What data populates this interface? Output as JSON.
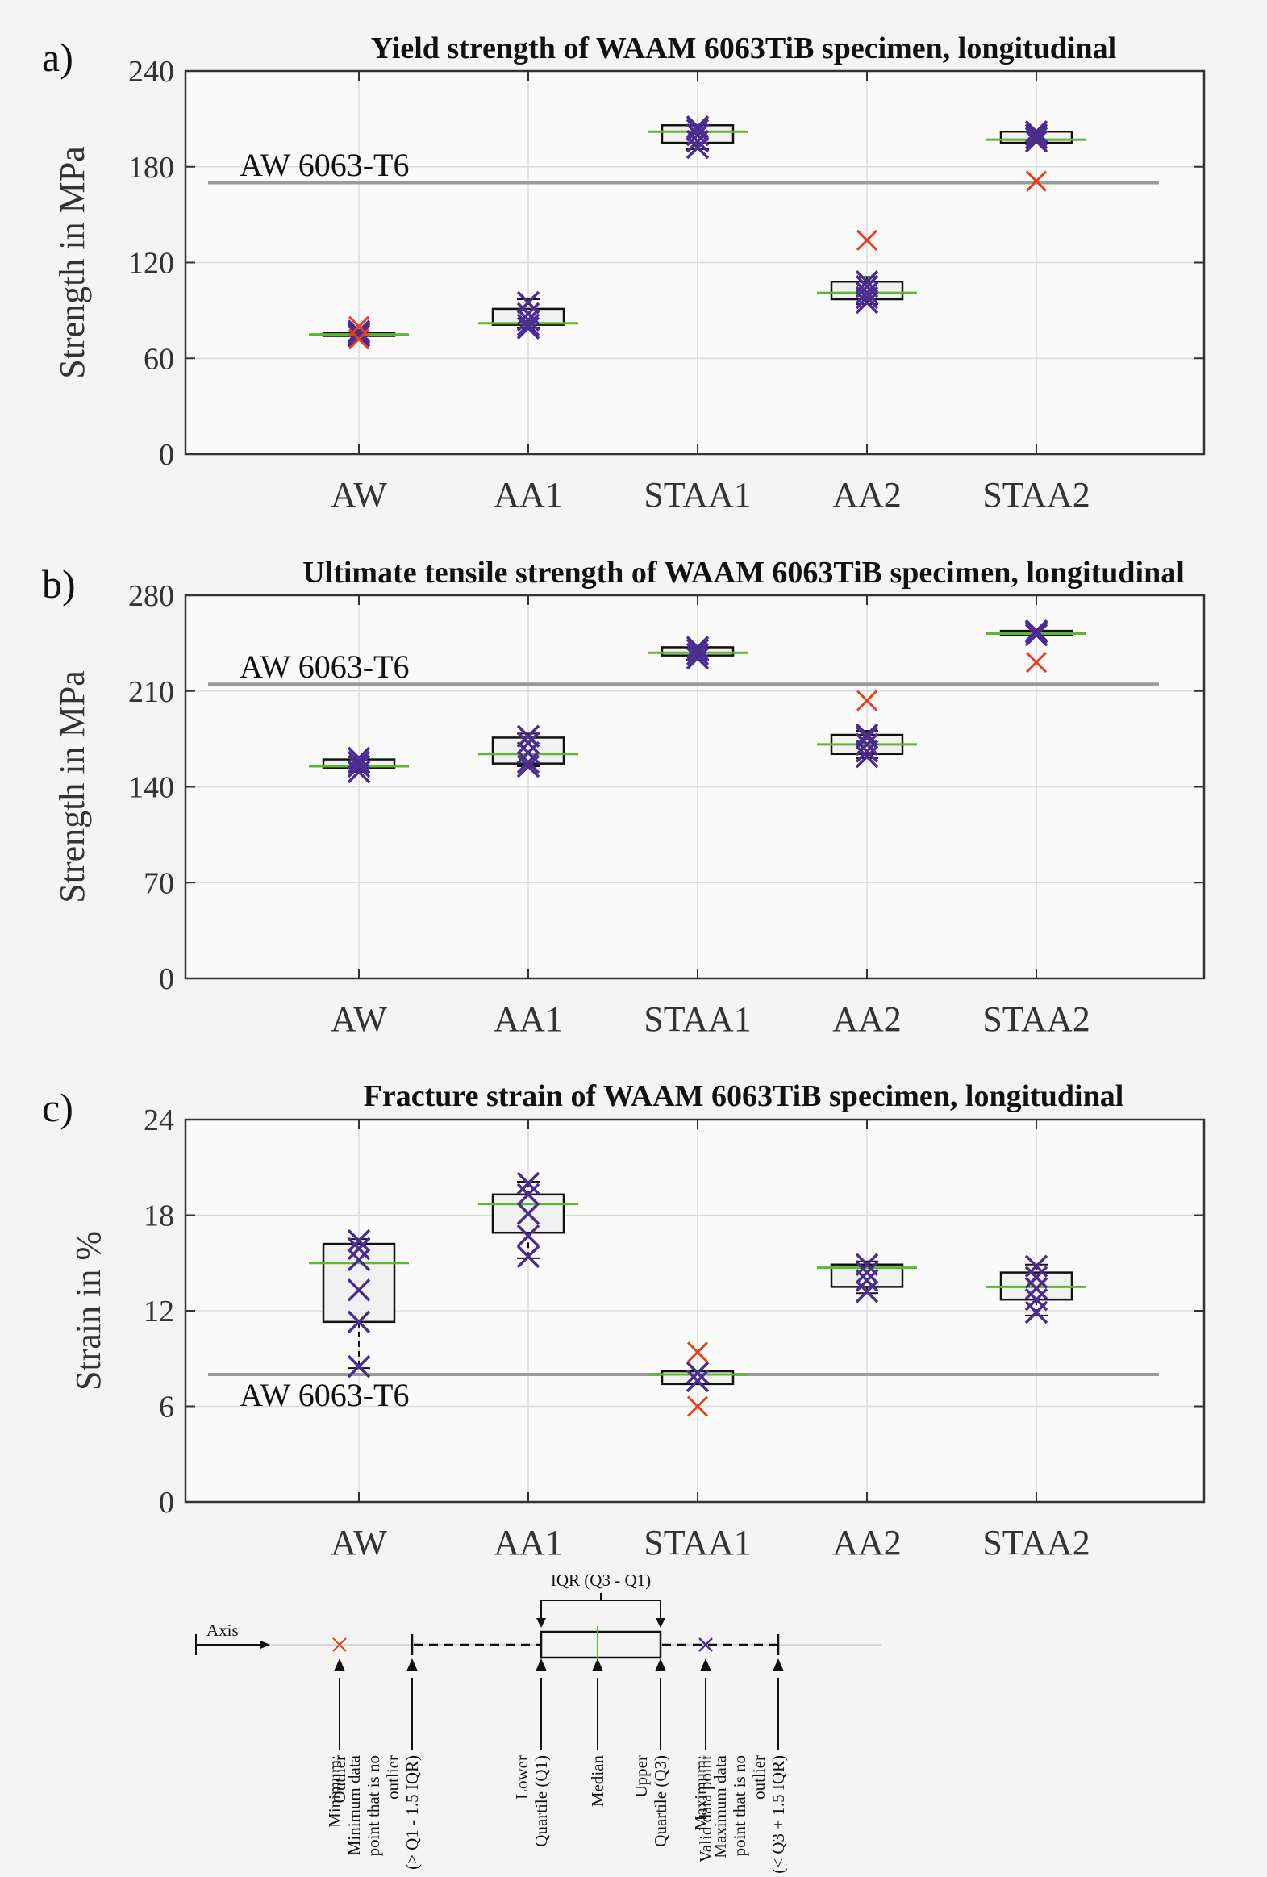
{
  "chart_data": [
    {
      "type": "box",
      "panel_label": "a)",
      "title": "Yield strength of WAAM 6063TiB specimen, longitudinal",
      "ylabel": "Strength in MPa",
      "ylim": [
        0,
        240
      ],
      "yticks": [
        0,
        60,
        120,
        180,
        240
      ],
      "categories": [
        "AW",
        "AA1",
        "STAA1",
        "AA2",
        "STAA2"
      ],
      "reference": {
        "label": "AW 6063-T6",
        "value": 170
      },
      "boxes": [
        {
          "q1": 74,
          "median": 75,
          "q3": 76,
          "wlo": 74,
          "whi": 76,
          "points": [
            74,
            75,
            76,
            77
          ],
          "outliers": [
            72,
            80
          ]
        },
        {
          "q1": 81,
          "median": 82,
          "q3": 91,
          "wlo": 79,
          "whi": 97,
          "points": [
            79,
            81,
            84,
            88,
            95
          ],
          "outliers": []
        },
        {
          "q1": 195,
          "median": 202,
          "q3": 206,
          "wlo": 191,
          "whi": 206,
          "points": [
            192,
            196,
            200,
            203,
            205
          ],
          "outliers": []
        },
        {
          "q1": 97,
          "median": 101,
          "q3": 108,
          "wlo": 94,
          "whi": 111,
          "points": [
            95,
            98,
            101,
            105,
            108
          ],
          "outliers": [
            134
          ]
        },
        {
          "q1": 195,
          "median": 197,
          "q3": 202,
          "wlo": 195,
          "whi": 202,
          "points": [
            196,
            198,
            200,
            202
          ],
          "outliers": [
            171
          ]
        }
      ]
    },
    {
      "type": "box",
      "panel_label": "b)",
      "title": "Ultimate tensile strength of WAAM 6063TiB specimen, longitudinal",
      "ylabel": "Strength in MPa",
      "ylim": [
        0,
        280
      ],
      "yticks": [
        0,
        70,
        140,
        210,
        280
      ],
      "categories": [
        "AW",
        "AA1",
        "STAA1",
        "AA2",
        "STAA2"
      ],
      "reference": {
        "label": "AW 6063-T6",
        "value": 215
      },
      "boxes": [
        {
          "q1": 154,
          "median": 155,
          "q3": 160,
          "wlo": 151,
          "whi": 162,
          "points": [
            151,
            155,
            158,
            161
          ],
          "outliers": []
        },
        {
          "q1": 157,
          "median": 164,
          "q3": 176,
          "wlo": 155,
          "whi": 179,
          "points": [
            155,
            158,
            165,
            172,
            177
          ],
          "outliers": []
        },
        {
          "q1": 236,
          "median": 238,
          "q3": 242,
          "wlo": 233,
          "whi": 242,
          "points": [
            234,
            237,
            240,
            242
          ],
          "outliers": []
        },
        {
          "q1": 164,
          "median": 171,
          "q3": 178,
          "wlo": 161,
          "whi": 181,
          "points": [
            162,
            166,
            171,
            176,
            178
          ],
          "outliers": [
            203
          ]
        },
        {
          "q1": 251,
          "median": 252,
          "q3": 254,
          "wlo": 251,
          "whi": 254,
          "points": [
            251,
            253,
            254
          ],
          "outliers": [
            231
          ]
        }
      ]
    },
    {
      "type": "box",
      "panel_label": "c)",
      "title": "Fracture strain of WAAM 6063TiB specimen, longitudinal",
      "ylabel": "Strain in %",
      "ylim": [
        0,
        24
      ],
      "yticks": [
        0,
        6,
        12,
        18,
        24
      ],
      "categories": [
        "AW",
        "AA1",
        "STAA1",
        "AA2",
        "STAA2"
      ],
      "reference": {
        "label": "AW 6063-T6",
        "value": 8
      },
      "boxes": [
        {
          "q1": 11.3,
          "median": 15,
          "q3": 16.2,
          "wlo": 8.4,
          "whi": 16.5,
          "points": [
            8.5,
            11.3,
            13.3,
            15.2,
            15.9,
            16.4
          ],
          "outliers": []
        },
        {
          "q1": 16.9,
          "median": 18.7,
          "q3": 19.3,
          "wlo": 15.3,
          "whi": 20.1,
          "points": [
            15.4,
            16.7,
            18.1,
            19.3,
            20
          ],
          "outliers": []
        },
        {
          "q1": 7.4,
          "median": 8,
          "q3": 8.2,
          "wlo": 7.4,
          "whi": 8.2,
          "points": [
            7.6,
            8.1
          ],
          "outliers": [
            9.4,
            6.0
          ]
        },
        {
          "q1": 13.5,
          "median": 14.7,
          "q3": 14.9,
          "wlo": 13.1,
          "whi": 15.1,
          "points": [
            13.2,
            13.9,
            14.4,
            14.9
          ],
          "outliers": []
        },
        {
          "q1": 12.7,
          "median": 13.5,
          "q3": 14.4,
          "wlo": 11.7,
          "whi": 14.9,
          "points": [
            11.9,
            12.7,
            13.4,
            14.1,
            14.8
          ],
          "outliers": []
        }
      ]
    }
  ],
  "legend": {
    "axis_label": "Axis",
    "iqr_label": "IQR (Q3 - Q1)",
    "items": [
      {
        "key": "outlier",
        "lines": [
          "Outlier"
        ]
      },
      {
        "key": "minimum",
        "lines": [
          "Minimum:",
          "Minimum data",
          "point that is no",
          "outlier",
          "(> Q1 - 1.5 IQR)"
        ]
      },
      {
        "key": "lower-quartile",
        "lines": [
          "Lower",
          "Quartile (Q1)"
        ]
      },
      {
        "key": "median",
        "lines": [
          "Median"
        ]
      },
      {
        "key": "upper-quartile",
        "lines": [
          "Upper",
          "Quartile (Q3)"
        ]
      },
      {
        "key": "valid-point",
        "lines": [
          "Valid data point"
        ]
      },
      {
        "key": "maximum",
        "lines": [
          "Maximum:",
          "Maximum data",
          "point that is no",
          "outlier",
          "(< Q3 + 1.5 IQR)"
        ]
      }
    ]
  },
  "colors": {
    "point": "#4b2d8f",
    "outlier": "#e8401c",
    "median": "#5cb82e",
    "reference": "#9a9a9a",
    "axes": "#333333",
    "grid": "#dcdcdc",
    "plot_bg": "#fafafa",
    "box_fill": "#f1f1f1"
  }
}
